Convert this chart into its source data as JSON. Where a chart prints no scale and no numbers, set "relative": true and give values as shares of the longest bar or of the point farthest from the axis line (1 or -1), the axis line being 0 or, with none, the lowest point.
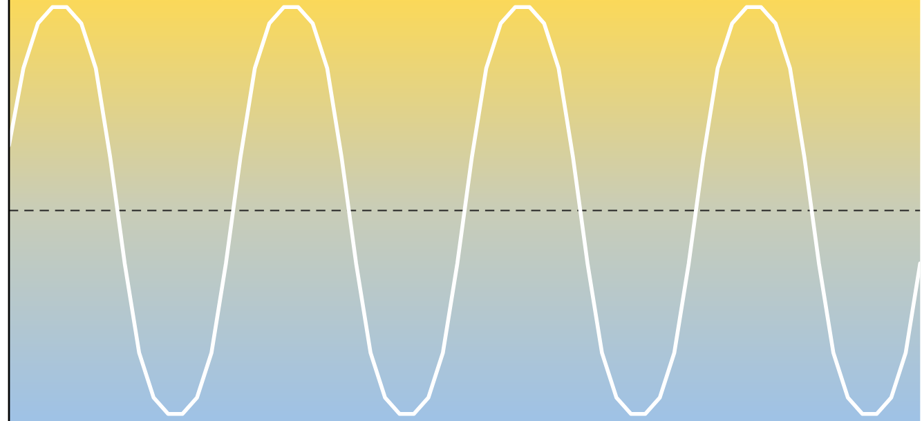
{
  "chart_data": {
    "type": "line",
    "relative": true,
    "categories": [
      null,
      null,
      null,
      null,
      null,
      null,
      null,
      null,
      null,
      null,
      null,
      null,
      null,
      null,
      null,
      null,
      null,
      null,
      null,
      null,
      null,
      null,
      null,
      null,
      null,
      null,
      null,
      null,
      null,
      null,
      null,
      null,
      null,
      null,
      null,
      null,
      null,
      null,
      null,
      null,
      null,
      null,
      null,
      null,
      null,
      null,
      null,
      null,
      null,
      null,
      null,
      null,
      null,
      null,
      null,
      null,
      null,
      null,
      null,
      null,
      null,
      null,
      null,
      null
    ],
    "series": [
      {
        "color": "#ffffff",
        "values": [
          0.32,
          0.7,
          0.92,
          1,
          1,
          0.92,
          0.7,
          0.26,
          -0.26,
          -0.7,
          -0.92,
          -1,
          -1,
          -0.92,
          -0.7,
          -0.26,
          0.26,
          0.7,
          0.92,
          1,
          1,
          0.92,
          0.7,
          0.26,
          -0.26,
          -0.7,
          -0.92,
          -1,
          -1,
          -0.92,
          -0.7,
          -0.26,
          0.26,
          0.7,
          0.92,
          1,
          1,
          0.92,
          0.7,
          0.26,
          -0.26,
          -0.7,
          -0.92,
          -1,
          -1,
          -0.92,
          -0.7,
          -0.26,
          0.26,
          0.7,
          0.92,
          1,
          1,
          0.92,
          0.7,
          0.26,
          -0.26,
          -0.7,
          -0.92,
          -1,
          -1,
          -0.92,
          -0.7,
          -0.26
        ]
      }
    ],
    "ref_lines": [
      {
        "axis": "y",
        "value": 0,
        "color": "#222222",
        "line_style": "dashed"
      }
    ]
  }
}
